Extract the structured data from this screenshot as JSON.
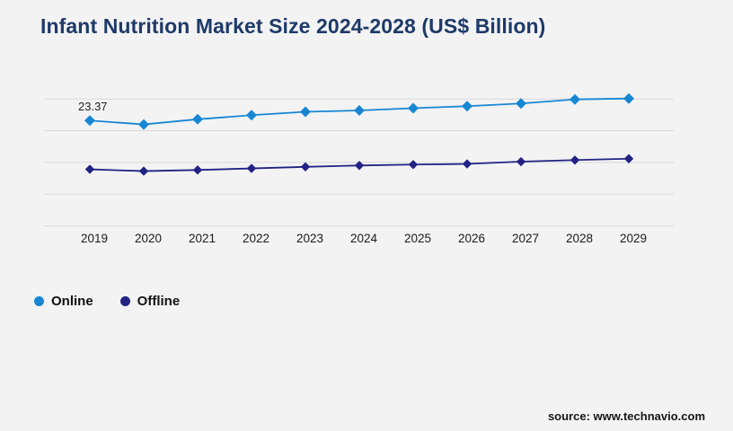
{
  "page": {
    "title": "Infant Nutrition Market Size 2024-2028 (US$ Billion)",
    "title_color": "#1e3a68",
    "source": "source: www.technavio.com",
    "background_color": "#f3f3f4"
  },
  "legend": {
    "items": [
      {
        "label": "Online",
        "color": "#1787d4"
      },
      {
        "label": "Offline",
        "color": "#222284"
      }
    ]
  },
  "chart_data": {
    "type": "line",
    "title": "Infant Nutrition Market Size 2024-2028 (US$ Billion)",
    "categories": [
      "2019",
      "2020",
      "2021",
      "2022",
      "2023",
      "2024",
      "2025",
      "2026",
      "2027",
      "2028",
      "2029"
    ],
    "series": [
      {
        "name": "Online",
        "color": "#1787d4",
        "marker": "diamond",
        "values": [
          23.37,
          22.5,
          23.65,
          24.55,
          25.3,
          25.6,
          26.1,
          26.55,
          27.15,
          28.05,
          28.25
        ]
      },
      {
        "name": "Offline",
        "color": "#222284",
        "marker": "diamond",
        "values": [
          12.55,
          12.15,
          12.4,
          12.75,
          13.1,
          13.4,
          13.6,
          13.75,
          14.25,
          14.6,
          14.9
        ]
      }
    ],
    "data_labels": [
      {
        "series": "Online",
        "category": "2019",
        "text": "23.37"
      }
    ],
    "xlabel": "",
    "ylabel": "",
    "ylim": [
      0,
      28.2
    ],
    "grid": "horizontal-only",
    "gridline_color": "#d9d9da",
    "y_axis_labels_visible": false,
    "x_axis_labels_visible": true,
    "legend_position": "bottom-left",
    "note": "Only the 2019 Online point is labeled (23.37); other values estimated from gridlines"
  }
}
